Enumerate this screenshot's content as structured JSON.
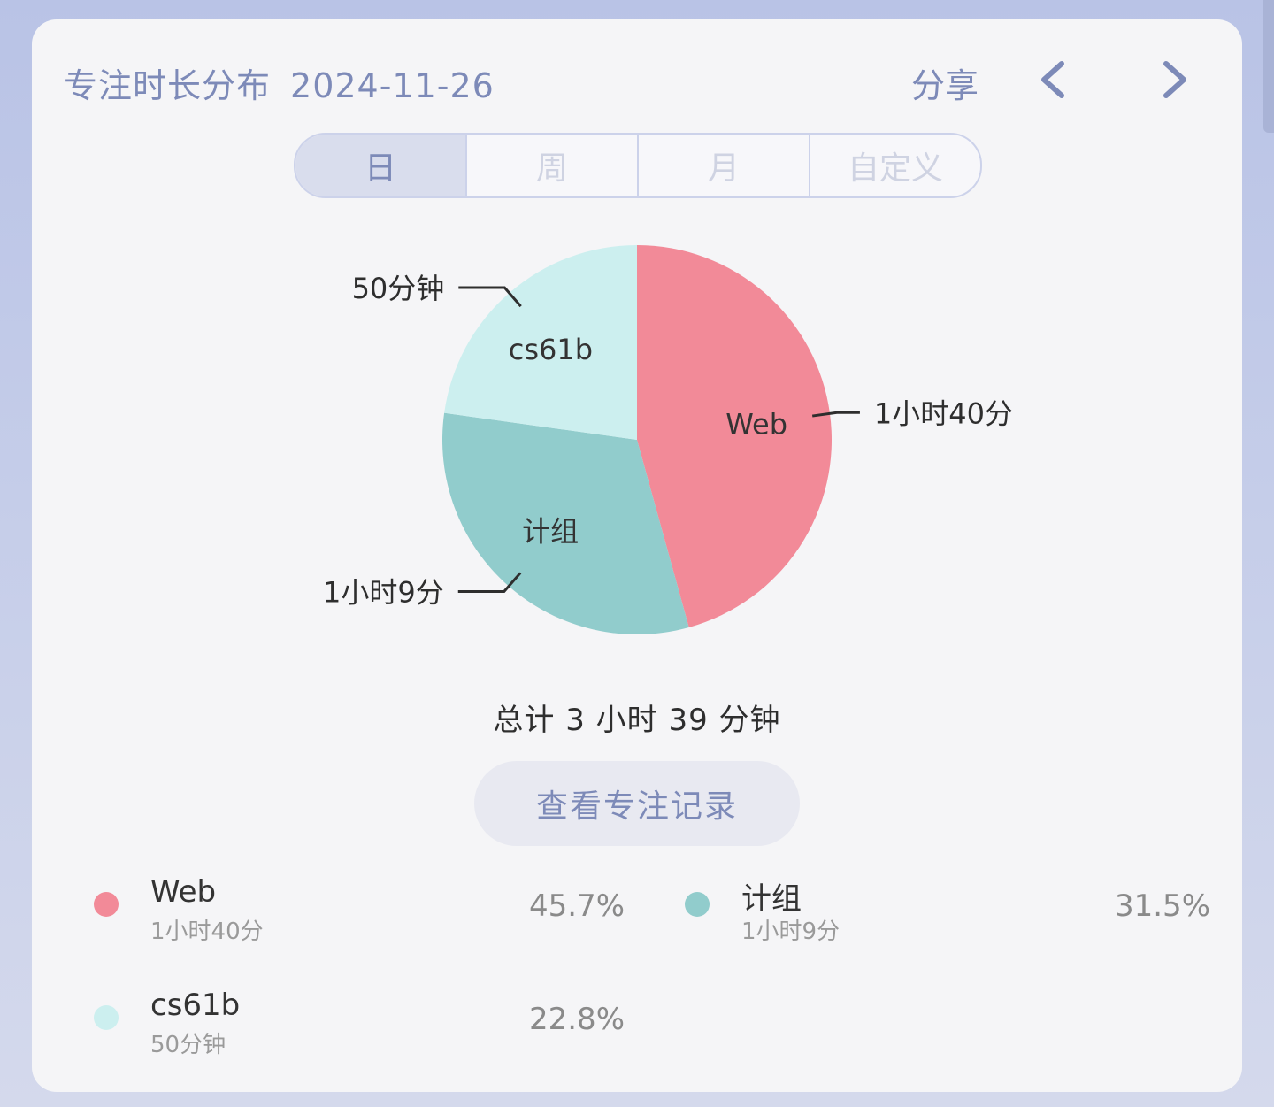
{
  "header": {
    "title": "专注时长分布",
    "date": "2024-11-26",
    "share_label": "分享"
  },
  "tabs": [
    {
      "label": "日",
      "active": true
    },
    {
      "label": "周",
      "active": false
    },
    {
      "label": "月",
      "active": false
    },
    {
      "label": "自定义",
      "active": false
    }
  ],
  "chart_data": {
    "type": "pie",
    "slices": [
      {
        "name": "Web",
        "duration": "1小时40分",
        "percent": 45.7,
        "color": "#f28a98"
      },
      {
        "name": "计组",
        "duration": "1小时9分",
        "percent": 31.5,
        "color": "#91cccc"
      },
      {
        "name": "cs61b",
        "duration": "50分钟",
        "percent": 22.8,
        "color": "#ccefef"
      }
    ]
  },
  "total_label": "总计 3 小时 39 分钟",
  "record_button_label": "查看专注记录",
  "legend": [
    {
      "name": "Web",
      "duration": "1小时40分",
      "percent_label": "45.7%",
      "color": "#f28a98"
    },
    {
      "name": "计组",
      "duration": "1小时9分",
      "percent_label": "31.5%",
      "color": "#91cccc"
    },
    {
      "name": "cs61b",
      "duration": "50分钟",
      "percent_label": "22.8%",
      "color": "#ccefef"
    }
  ]
}
